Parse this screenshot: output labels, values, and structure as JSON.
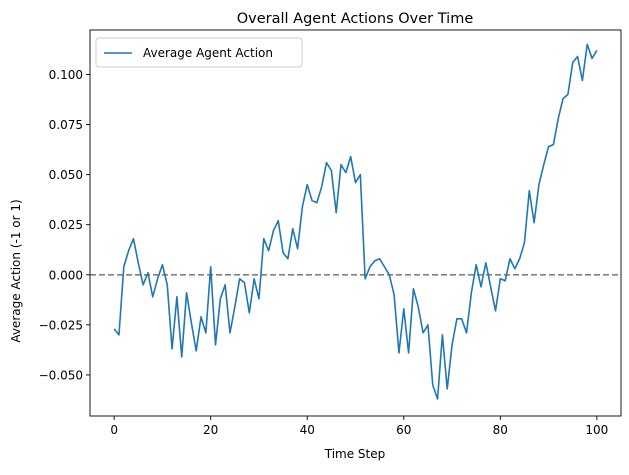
{
  "chart_data": {
    "type": "line",
    "title": "Overall Agent Actions Over Time",
    "xlabel": "Time Step",
    "ylabel": "Average Action (-1 or 1)",
    "xlim": [
      -5,
      105
    ],
    "ylim": [
      -0.0705,
      0.1222
    ],
    "xticks": [
      0,
      20,
      40,
      60,
      80,
      100
    ],
    "xtick_labels": [
      "0",
      "20",
      "40",
      "60",
      "80",
      "100"
    ],
    "yticks": [
      -0.05,
      -0.025,
      0.0,
      0.025,
      0.05,
      0.075,
      0.1
    ],
    "ytick_labels": [
      "−0.050",
      "−0.025",
      "0.000",
      "0.025",
      "0.050",
      "0.075",
      "0.100"
    ],
    "grid": false,
    "legend_position": "upper-left",
    "reference_line": {
      "y": 0.0,
      "style": "dashed",
      "color": "#808080"
    },
    "series": [
      {
        "name": "Average Agent Action",
        "color": "#1f77b4",
        "x": [
          0,
          1,
          2,
          3,
          4,
          5,
          6,
          7,
          8,
          9,
          10,
          11,
          12,
          13,
          14,
          15,
          16,
          17,
          18,
          19,
          20,
          21,
          22,
          23,
          24,
          25,
          26,
          27,
          28,
          29,
          30,
          31,
          32,
          33,
          34,
          35,
          36,
          37,
          38,
          39,
          40,
          41,
          42,
          43,
          44,
          45,
          46,
          47,
          48,
          49,
          50,
          51,
          52,
          53,
          54,
          55,
          56,
          57,
          58,
          59,
          60,
          61,
          62,
          63,
          64,
          65,
          66,
          67,
          68,
          69,
          70,
          71,
          72,
          73,
          74,
          75,
          76,
          77,
          78,
          79,
          80,
          81,
          82,
          83,
          84,
          85,
          86,
          87,
          88,
          89,
          90,
          91,
          92,
          93,
          94,
          95,
          96,
          97,
          98,
          99,
          100
        ],
        "values": [
          -0.027,
          -0.03,
          0.004,
          0.012,
          0.018,
          0.006,
          -0.005,
          0.001,
          -0.011,
          -0.002,
          0.005,
          -0.005,
          -0.037,
          -0.011,
          -0.041,
          -0.009,
          -0.024,
          -0.038,
          -0.021,
          -0.029,
          0.004,
          -0.035,
          -0.012,
          -0.005,
          -0.029,
          -0.016,
          -0.002,
          -0.004,
          -0.019,
          -0.002,
          -0.012,
          0.018,
          0.012,
          0.022,
          0.027,
          0.011,
          0.008,
          0.023,
          0.013,
          0.034,
          0.045,
          0.037,
          0.036,
          0.044,
          0.056,
          0.052,
          0.031,
          0.055,
          0.051,
          0.059,
          0.046,
          0.05,
          -0.002,
          0.004,
          0.007,
          0.008,
          0.004,
          0.0,
          -0.01,
          -0.039,
          -0.017,
          -0.039,
          -0.007,
          -0.016,
          -0.029,
          -0.025,
          -0.055,
          -0.062,
          -0.03,
          -0.057,
          -0.035,
          -0.022,
          -0.022,
          -0.029,
          -0.009,
          0.005,
          -0.006,
          0.006,
          -0.006,
          -0.018,
          -0.002,
          -0.003,
          0.008,
          0.003,
          0.008,
          0.016,
          0.042,
          0.026,
          0.045,
          0.055,
          0.064,
          0.065,
          0.078,
          0.088,
          0.09,
          0.106,
          0.109,
          0.097,
          0.115,
          0.108,
          0.112
        ]
      }
    ]
  }
}
